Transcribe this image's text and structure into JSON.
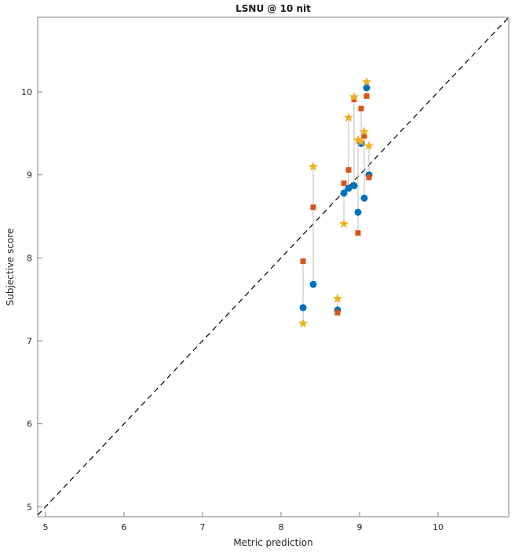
{
  "page": {
    "title": "LSNU @ 10 nit"
  },
  "chart_data": {
    "type": "scatter",
    "title": "LSNU @ 10 nit",
    "xlabel": "Metric prediction",
    "ylabel": "Subjective score",
    "xlim": [
      4.9,
      10.9
    ],
    "ylim": [
      4.88,
      10.9
    ],
    "xticks": [
      5,
      6,
      7,
      8,
      9,
      10
    ],
    "yticks": [
      5,
      6,
      7,
      8,
      9,
      10
    ],
    "grid": false,
    "legend": false,
    "identity_line": {
      "style": "dashed",
      "color": "#000000",
      "from": 4.9,
      "to": 10.9
    },
    "colors": {
      "circle": "#0072BD",
      "square": "#D95319",
      "star": "#EDB120",
      "connector": "#bdbdbd",
      "axes": "#808080",
      "text": "#262626"
    },
    "series_names": [
      "circle-series",
      "square-series",
      "star-series"
    ],
    "groups": [
      {
        "x": 8.28,
        "circle": 7.4,
        "square": 7.96,
        "star": 7.21
      },
      {
        "x": 8.41,
        "circle": 7.68,
        "square": 8.61,
        "star": 9.1
      },
      {
        "x": 8.72,
        "circle": 7.37,
        "square": 7.34,
        "star": 7.51
      },
      {
        "x": 8.8,
        "circle": 8.78,
        "square": 8.9,
        "star": 8.41
      },
      {
        "x": 8.86,
        "circle": 8.84,
        "square": 9.06,
        "star": 9.69
      },
      {
        "x": 8.93,
        "circle": 8.87,
        "square": 9.91,
        "star": 9.94
      },
      {
        "x": 8.98,
        "circle": 8.55,
        "square": 8.3,
        "star": 9.42
      },
      {
        "x": 9.02,
        "circle": 9.38,
        "square": 9.8,
        "star": 9.4
      },
      {
        "x": 9.06,
        "circle": 8.72,
        "square": 9.47,
        "star": 9.52
      },
      {
        "x": 9.09,
        "circle": 10.05,
        "square": 9.95,
        "star": 10.12
      },
      {
        "x": 9.12,
        "circle": 9.0,
        "square": 8.97,
        "star": 9.35
      }
    ]
  }
}
